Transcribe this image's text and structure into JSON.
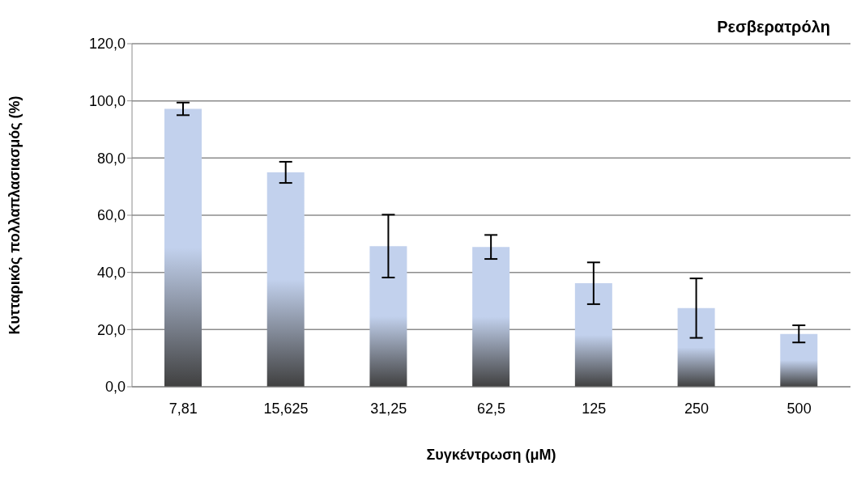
{
  "chart_data": {
    "type": "bar",
    "title": "Ρεσβερατρόλη",
    "xlabel": "Συγκέντρωση (μΜ)",
    "ylabel": "Κυτταρικός  πολλαπλασιασμός (%)",
    "categories": [
      "7,81",
      "15,625",
      "31,25",
      "62,5",
      "125",
      "250",
      "500"
    ],
    "values": [
      97.2,
      75.0,
      49.2,
      48.9,
      36.2,
      27.5,
      18.5
    ],
    "errors": [
      2.2,
      3.7,
      11,
      4.2,
      7.3,
      10.4,
      3
    ],
    "color": "#c2d1ed",
    "ylim": [
      0,
      120
    ],
    "yticks": [
      {
        "value": 0,
        "label": "0,0"
      },
      {
        "value": 20,
        "label": "20,0"
      },
      {
        "value": 40,
        "label": "40,0"
      },
      {
        "value": 60,
        "label": "60,0"
      },
      {
        "value": 80,
        "label": "80,0"
      },
      {
        "value": 100,
        "label": "100,0"
      },
      {
        "value": 120,
        "label": "120,0"
      }
    ],
    "grid": "y",
    "legend": false
  }
}
